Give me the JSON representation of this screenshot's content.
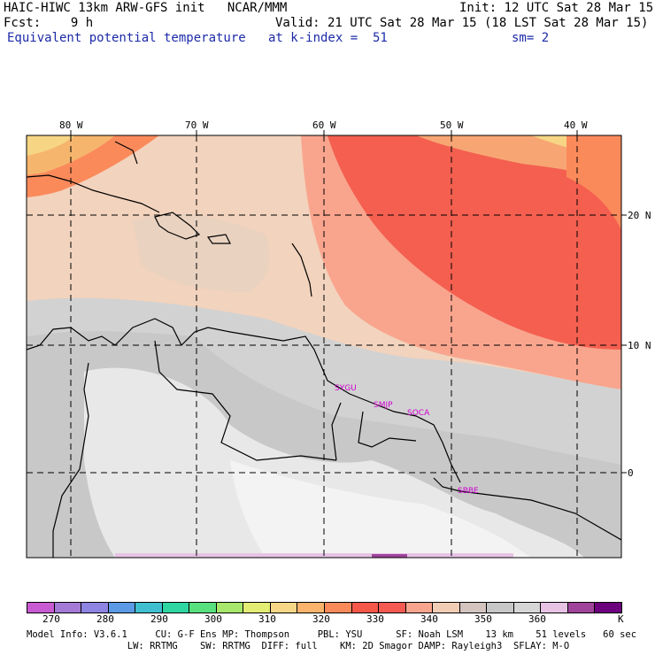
{
  "header": {
    "line1_left": "HAIC-HIWC 13km ARW-GFS init   NCAR/MMM",
    "line1_right": "Init: 12 UTC Sat 28 Mar 15",
    "line2_left": "Fcst:    9 h",
    "line2_right": "Valid: 21 UTC Sat 28 Mar 15 (18 LST Sat 28 Mar 15)",
    "line3_left": "Equivalent potential temperature",
    "line3_mid": "at k-index =  51",
    "line3_right": "sm= 2"
  },
  "map": {
    "lon_labels": [
      "80 W",
      "70 W",
      "60 W",
      "50 W",
      "40 W"
    ],
    "lat_labels": [
      "20 N",
      "10 N",
      "0"
    ],
    "stations": [
      "SYGU",
      "SMJP",
      "SOCA",
      "SBBE"
    ]
  },
  "colorbar": {
    "colors": [
      "#c95bd2",
      "#a37ad6",
      "#8d84e3",
      "#5c9ae5",
      "#3fbfcf",
      "#2fd6a2",
      "#58e07e",
      "#a7e86c",
      "#e3ec73",
      "#f7d787",
      "#fcb46c",
      "#fb8a5b",
      "#f55749",
      "#f45a52",
      "#f9a58e",
      "#f2cdb5",
      "#d3c4bf",
      "#c7c7c7",
      "#d6d6d6",
      "#e7c3e4",
      "#a0449b",
      "#6c007d"
    ],
    "labels": [
      "270",
      "280",
      "290",
      "300",
      "310",
      "320",
      "330",
      "340",
      "350",
      "360",
      "K"
    ]
  },
  "footer": {
    "line1": "Model Info: V3.6.1     CU: G-F Ens MP: Thompson     PBL: YSU      SF: Noah LSM    13 km    51 levels   60 sec",
    "line2": "                  LW: RRTMG    SW: RRTMG  DIFF: full    KM: 2D Smagor DAMP: Rayleigh3  SFLAY: M-O"
  }
}
